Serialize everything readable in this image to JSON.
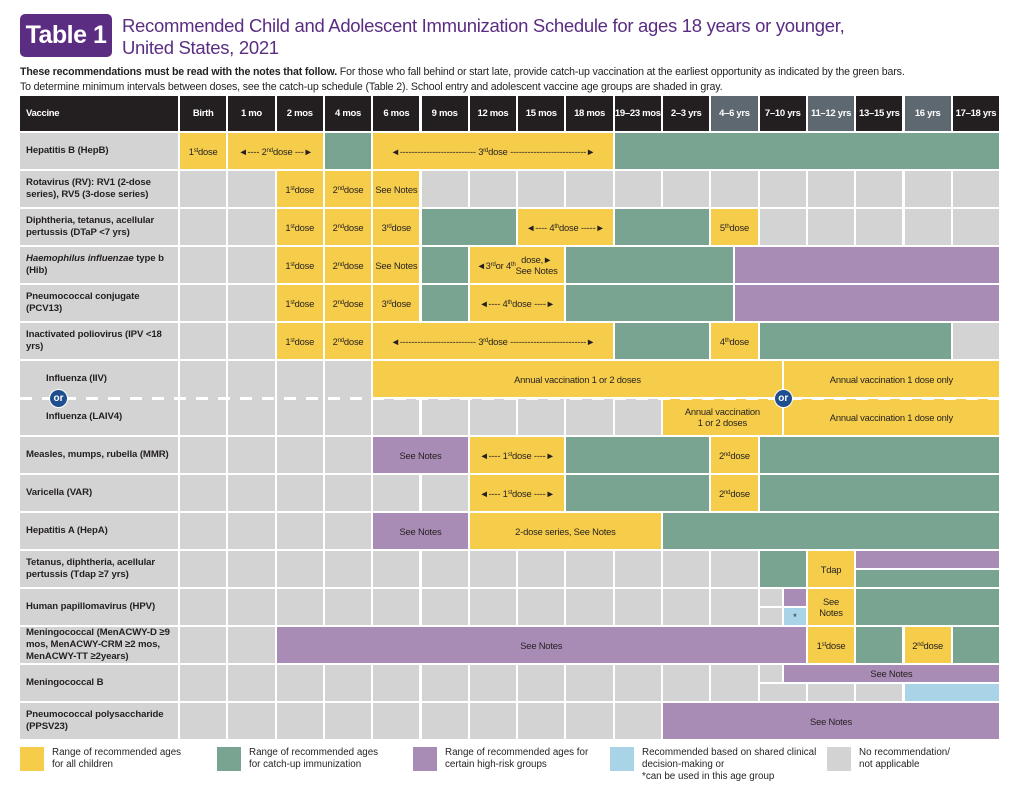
{
  "header": {
    "title_box": "Table 1",
    "title_line1": "Recommended Child and Adolescent Immunization Schedule for ages 18 years or younger,",
    "title_line2": "United States, 2021",
    "intro_bold": "These recommendations must be read with the notes that follow.",
    "intro_rest": " For those who fall behind or start late, provide catch-up vaccination at the earliest opportunity as indicated by the green bars.",
    "intro_line2": "To determine minimum intervals between doses, see the catch-up schedule (Table 2). School entry and adolescent vaccine age groups are shaded in gray."
  },
  "colors": {
    "yellow": "#f6cd4b",
    "green": "#7aa492",
    "purple": "#a98cb5",
    "blue": "#a9d3e6",
    "gray": "#d3d3d3",
    "title": "#5b2d82",
    "header": "#231f20",
    "header_shaded": "#5d6870",
    "or_badge": "#1f4f8f"
  },
  "table": {
    "vaccine_header": "Vaccine",
    "ages": [
      "Birth",
      "1 mo",
      "2 mos",
      "4 mos",
      "6 mos",
      "9 mos",
      "12 mos",
      "15 mos",
      "18 mos",
      "19–23 mos",
      "2–3 yrs",
      "4–6 yrs",
      "7–10 yrs",
      "11–12 yrs",
      "13–15 yrs",
      "16 yrs",
      "17–18 yrs"
    ],
    "shaded_age_indices": [
      11,
      13,
      15
    ],
    "or_label": "or",
    "rows": [
      {
        "label": "Hepatitis B (HepB)",
        "cells": [
          {
            "from": 0,
            "to": 1,
            "color": "yellow",
            "text": "1st dose"
          },
          {
            "from": 1,
            "to": 3,
            "color": "yellow",
            "text": "◄---- 2nd dose ---►"
          },
          {
            "from": 3,
            "to": 4,
            "color": "green"
          },
          {
            "from": 4,
            "to": 9,
            "color": "yellow",
            "text": "◄-------------------------- 3rd dose --------------------------►"
          },
          {
            "from": 9,
            "to": 17,
            "color": "green"
          }
        ]
      },
      {
        "label": "Rotavirus (RV): RV1 (2-dose series), RV5 (3-dose series)",
        "cells": [
          {
            "from": 0,
            "to": 2,
            "color": "gray",
            "split": true
          },
          {
            "from": 2,
            "to": 3,
            "color": "yellow",
            "text": "1st dose"
          },
          {
            "from": 3,
            "to": 4,
            "color": "yellow",
            "text": "2nd dose"
          },
          {
            "from": 4,
            "to": 5,
            "color": "yellow",
            "text": "See Notes"
          },
          {
            "from": 5,
            "to": 17,
            "color": "gray",
            "split": true
          }
        ]
      },
      {
        "label": "Diphtheria, tetanus, acellular pertussis (DTaP <7 yrs)",
        "cells": [
          {
            "from": 0,
            "to": 2,
            "color": "gray",
            "split": true
          },
          {
            "from": 2,
            "to": 3,
            "color": "yellow",
            "text": "1st dose"
          },
          {
            "from": 3,
            "to": 4,
            "color": "yellow",
            "text": "2nd dose"
          },
          {
            "from": 4,
            "to": 5,
            "color": "yellow",
            "text": "3rd dose"
          },
          {
            "from": 5,
            "to": 7,
            "color": "green"
          },
          {
            "from": 7,
            "to": 9,
            "color": "yellow",
            "text": "◄---- 4th dose -----►"
          },
          {
            "from": 9,
            "to": 11,
            "color": "green"
          },
          {
            "from": 11,
            "to": 12,
            "color": "yellow",
            "text": "5th dose"
          },
          {
            "from": 12,
            "to": 17,
            "color": "gray",
            "split": true
          }
        ]
      },
      {
        "label_italic": "Haemophilus influenzae",
        "label": " type b (Hib)",
        "cells": [
          {
            "from": 0,
            "to": 2,
            "color": "gray",
            "split": true
          },
          {
            "from": 2,
            "to": 3,
            "color": "yellow",
            "text": "1st dose"
          },
          {
            "from": 3,
            "to": 4,
            "color": "yellow",
            "text": "2nd dose"
          },
          {
            "from": 4,
            "to": 5,
            "color": "yellow",
            "text": "See Notes"
          },
          {
            "from": 5,
            "to": 6,
            "color": "green"
          },
          {
            "from": 6,
            "to": 8,
            "color": "yellow",
            "text": "◄3rd or 4th dose,►\nSee Notes"
          },
          {
            "from": 8,
            "to": 11.5,
            "color": "green"
          },
          {
            "from": 11.5,
            "to": 17,
            "color": "purple"
          }
        ]
      },
      {
        "label": "Pneumococcal conjugate (PCV13)",
        "cells": [
          {
            "from": 0,
            "to": 2,
            "color": "gray",
            "split": true
          },
          {
            "from": 2,
            "to": 3,
            "color": "yellow",
            "text": "1st dose"
          },
          {
            "from": 3,
            "to": 4,
            "color": "yellow",
            "text": "2nd dose"
          },
          {
            "from": 4,
            "to": 5,
            "color": "yellow",
            "text": "3rd dose"
          },
          {
            "from": 5,
            "to": 6,
            "color": "green"
          },
          {
            "from": 6,
            "to": 8,
            "color": "yellow",
            "text": "◄---- 4th dose ----►"
          },
          {
            "from": 8,
            "to": 11.5,
            "color": "green"
          },
          {
            "from": 11.5,
            "to": 17,
            "color": "purple"
          }
        ]
      },
      {
        "label": "Inactivated poliovirus (IPV <18 yrs)",
        "cells": [
          {
            "from": 0,
            "to": 2,
            "color": "gray",
            "split": true
          },
          {
            "from": 2,
            "to": 3,
            "color": "yellow",
            "text": "1st dose"
          },
          {
            "from": 3,
            "to": 4,
            "color": "yellow",
            "text": "2nd dose"
          },
          {
            "from": 4,
            "to": 9,
            "color": "yellow",
            "text": "◄-------------------------- 3rd dose --------------------------►"
          },
          {
            "from": 9,
            "to": 11,
            "color": "green"
          },
          {
            "from": 11,
            "to": 12,
            "color": "yellow",
            "text": "4th dose"
          },
          {
            "from": 12,
            "to": 16,
            "color": "green"
          },
          {
            "from": 16,
            "to": 17,
            "color": "gray"
          }
        ]
      },
      {
        "label": "Influenza (IIV)",
        "label2": "Influenza (LAIV4)",
        "tall": true,
        "cells": [
          {
            "from": 0,
            "to": 4,
            "color": "gray",
            "split": true
          },
          {
            "from": 4,
            "to": 12.5,
            "color": "yellow",
            "part": "top",
            "text": "Annual vaccination 1 or 2 doses"
          },
          {
            "from": 4,
            "to": 10,
            "color": "gray",
            "part": "bottom",
            "split": true
          },
          {
            "from": 10,
            "to": 12.5,
            "color": "yellow",
            "part": "bottom",
            "text": "Annual vaccination\n1 or 2 doses"
          },
          {
            "from": 12.5,
            "to": 17,
            "color": "yellow",
            "part": "top",
            "text": "Annual vaccination 1 dose only"
          },
          {
            "from": 12.5,
            "to": 17,
            "color": "yellow",
            "part": "bottom",
            "text": "Annual vaccination 1 dose only"
          }
        ]
      },
      {
        "label": "Measles, mumps, rubella (MMR)",
        "cells": [
          {
            "from": 0,
            "to": 4,
            "color": "gray",
            "split": true
          },
          {
            "from": 4,
            "to": 6,
            "color": "purple",
            "text": "See Notes"
          },
          {
            "from": 6,
            "to": 8,
            "color": "yellow",
            "text": "◄---- 1st dose ----►"
          },
          {
            "from": 8,
            "to": 11,
            "color": "green"
          },
          {
            "from": 11,
            "to": 12,
            "color": "yellow",
            "text": "2nd dose"
          },
          {
            "from": 12,
            "to": 17,
            "color": "green"
          }
        ]
      },
      {
        "label": "Varicella (VAR)",
        "cells": [
          {
            "from": 0,
            "to": 6,
            "color": "gray",
            "split": true
          },
          {
            "from": 6,
            "to": 8,
            "color": "yellow",
            "text": "◄---- 1st dose ----►"
          },
          {
            "from": 8,
            "to": 11,
            "color": "green"
          },
          {
            "from": 11,
            "to": 12,
            "color": "yellow",
            "text": "2nd dose"
          },
          {
            "from": 12,
            "to": 17,
            "color": "green"
          }
        ]
      },
      {
        "label": "Hepatitis A (HepA)",
        "cells": [
          {
            "from": 0,
            "to": 4,
            "color": "gray",
            "split": true
          },
          {
            "from": 4,
            "to": 6,
            "color": "purple",
            "text": "See Notes"
          },
          {
            "from": 6,
            "to": 10,
            "color": "yellow",
            "text": "2-dose series, See Notes"
          },
          {
            "from": 10,
            "to": 17,
            "color": "green"
          }
        ]
      },
      {
        "label": "Tetanus, diphtheria, acellular pertussis (Tdap ≥7 yrs)",
        "cells": [
          {
            "from": 0,
            "to": 12,
            "color": "gray",
            "split": true
          },
          {
            "from": 12,
            "to": 13,
            "color": "green"
          },
          {
            "from": 13,
            "to": 14,
            "color": "yellow",
            "text": "Tdap"
          },
          {
            "from": 14,
            "to": 17,
            "color": "purple",
            "part": "top"
          },
          {
            "from": 14,
            "to": 17,
            "color": "green",
            "part": "bottom"
          }
        ]
      },
      {
        "label": "Human papillomavirus (HPV)",
        "cells": [
          {
            "from": 0,
            "to": 12,
            "color": "gray",
            "split": true
          },
          {
            "from": 12,
            "to": 12.5,
            "color": "gray",
            "part": "top"
          },
          {
            "from": 12,
            "to": 12.5,
            "color": "gray",
            "part": "bottom"
          },
          {
            "from": 12.5,
            "to": 13,
            "color": "purple",
            "part": "top"
          },
          {
            "from": 12.5,
            "to": 13,
            "color": "blue",
            "part": "bottom",
            "text": "*"
          },
          {
            "from": 13,
            "to": 14,
            "color": "yellow",
            "text": "See\nNotes"
          },
          {
            "from": 14,
            "to": 17,
            "color": "green"
          }
        ]
      },
      {
        "label": "Meningococcal (MenACWY-D ≥9 mos, MenACWY-CRM ≥2 mos, MenACWY-TT ≥2years)",
        "cells": [
          {
            "from": 0,
            "to": 2,
            "color": "gray",
            "split": true
          },
          {
            "from": 2,
            "to": 13,
            "color": "purple",
            "text": "See Notes"
          },
          {
            "from": 13,
            "to": 14,
            "color": "yellow",
            "text": "1st dose"
          },
          {
            "from": 14,
            "to": 15,
            "color": "green"
          },
          {
            "from": 15,
            "to": 16,
            "color": "yellow",
            "text": "2nd dose"
          },
          {
            "from": 16,
            "to": 17,
            "color": "green"
          }
        ]
      },
      {
        "label": "Meningococcal B",
        "cells": [
          {
            "from": 0,
            "to": 12,
            "color": "gray",
            "split": true
          },
          {
            "from": 12,
            "to": 12.5,
            "color": "gray",
            "part": "top"
          },
          {
            "from": 12.5,
            "to": 17,
            "color": "purple",
            "part": "top",
            "text": "See Notes"
          },
          {
            "from": 12,
            "to": 15,
            "color": "gray",
            "part": "bottom",
            "split": true
          },
          {
            "from": 15,
            "to": 17,
            "color": "blue",
            "part": "bottom"
          }
        ]
      },
      {
        "label": "Pneumococcal polysaccharide (PPSV23)",
        "cells": [
          {
            "from": 0,
            "to": 10,
            "color": "gray",
            "split": true
          },
          {
            "from": 10,
            "to": 17,
            "color": "purple",
            "text": "See Notes"
          }
        ]
      }
    ]
  },
  "legend": [
    {
      "color": "yellow",
      "text": "Range of recommended ages\nfor all children"
    },
    {
      "color": "green",
      "text": "Range of recommended ages\nfor catch-up immunization"
    },
    {
      "color": "purple",
      "text": "Range of recommended ages for\ncertain high-risk groups"
    },
    {
      "color": "blue",
      "text": "Recommended based on shared clinical\ndecision-making or\n   *can be used in this age group"
    },
    {
      "color": "gray",
      "text": "No recommendation/\nnot applicable"
    }
  ]
}
